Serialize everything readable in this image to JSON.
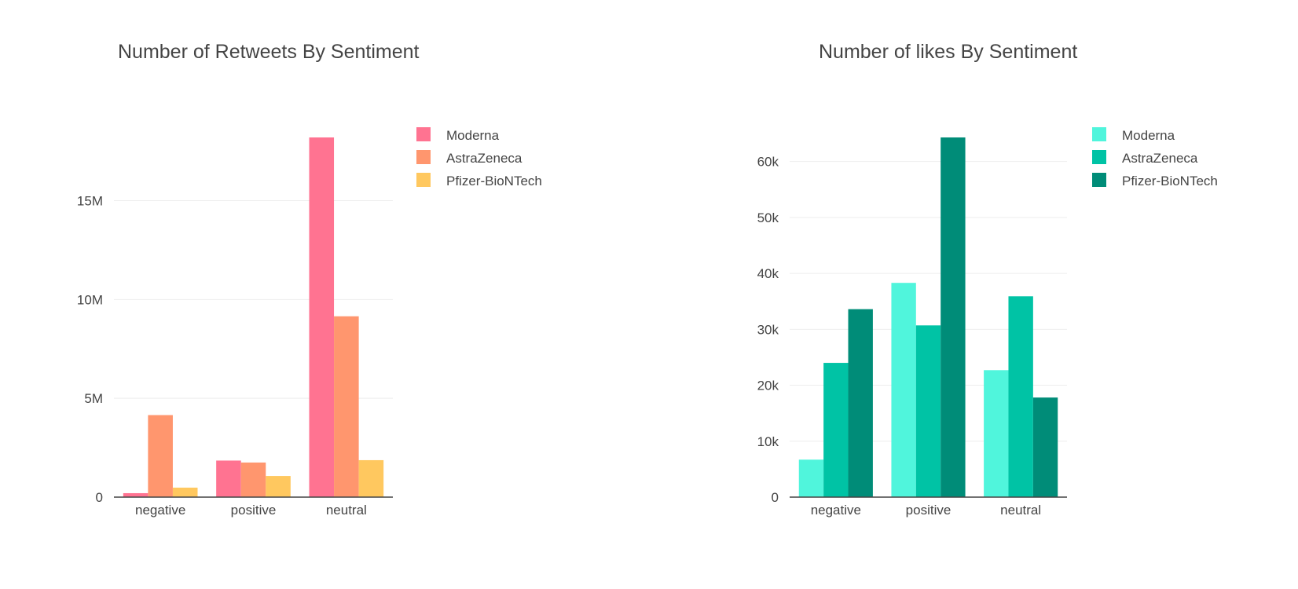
{
  "chart_data": [
    {
      "type": "bar",
      "title": "Number of Retweets By Sentiment",
      "categories": [
        "negative",
        "positive",
        "neutral"
      ],
      "series": [
        {
          "name": "Moderna",
          "color": "#ff7391",
          "values": [
            200000,
            1850000,
            18200000
          ]
        },
        {
          "name": "AstraZeneca",
          "color": "#ff966e",
          "values": [
            4150000,
            1750000,
            9150000
          ]
        },
        {
          "name": "Pfizer-BioNTech",
          "color": "#ffc85f",
          "values": [
            480000,
            1070000,
            1870000
          ]
        }
      ],
      "ylim": [
        0,
        18200000
      ],
      "yticks": [
        0,
        5000000,
        10000000,
        15000000
      ],
      "ytick_labels": [
        "0",
        "5M",
        "10M",
        "15M"
      ],
      "xlabel": "",
      "ylabel": ""
    },
    {
      "type": "bar",
      "title": "Number of likes By Sentiment",
      "categories": [
        "negative",
        "positive",
        "neutral"
      ],
      "series": [
        {
          "name": "Moderna",
          "color": "#50f5dc",
          "values": [
            6700,
            38300,
            22700
          ]
        },
        {
          "name": "AstraZeneca",
          "color": "#00c3a5",
          "values": [
            24000,
            30700,
            35900
          ]
        },
        {
          "name": "Pfizer-BioNTech",
          "color": "#008c78",
          "values": [
            33600,
            64300,
            17800
          ]
        }
      ],
      "ylim": [
        0,
        64300
      ],
      "yticks": [
        0,
        10000,
        20000,
        30000,
        40000,
        50000,
        60000
      ],
      "ytick_labels": [
        "0",
        "10k",
        "20k",
        "30k",
        "40k",
        "50k",
        "60k"
      ],
      "xlabel": "",
      "ylabel": ""
    }
  ]
}
